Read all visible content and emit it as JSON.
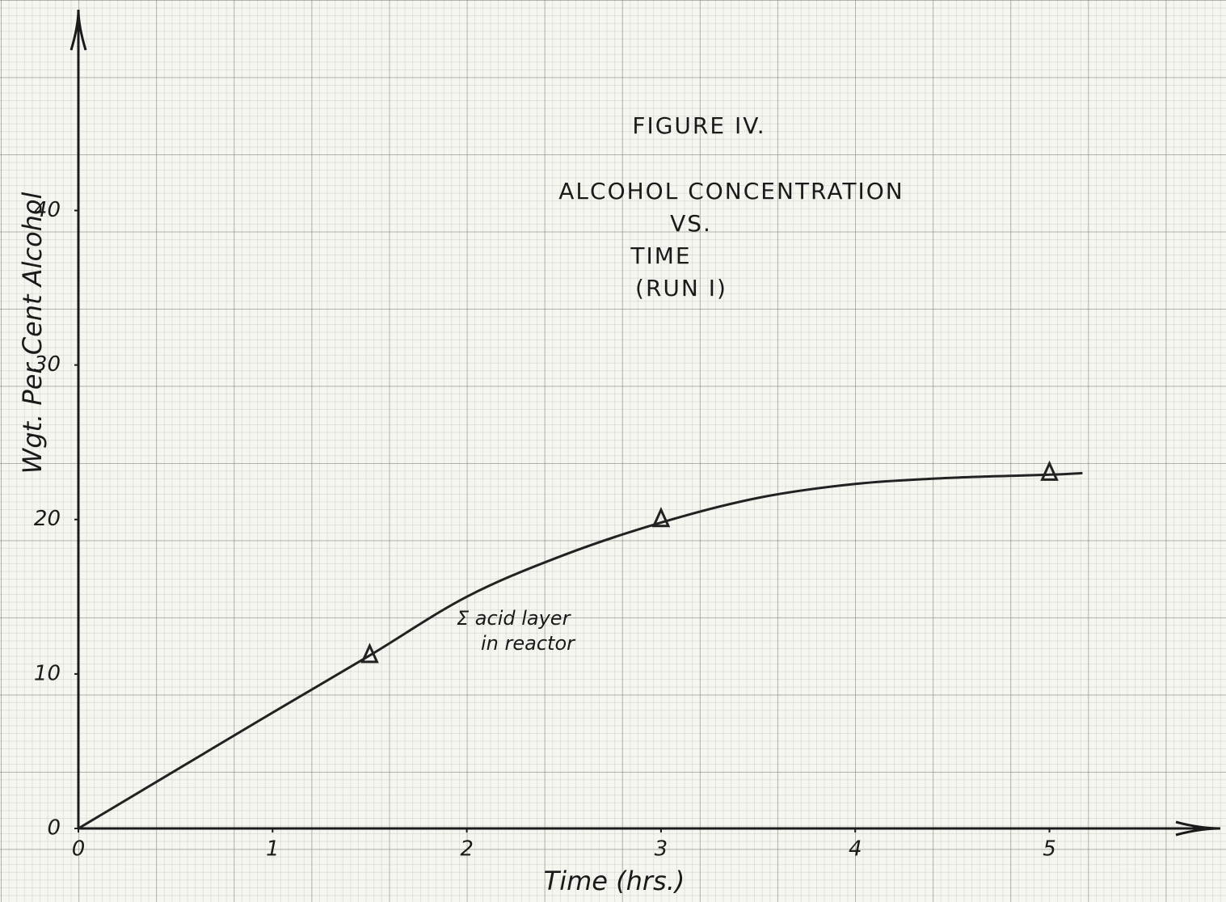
{
  "chart_data": {
    "type": "line",
    "title": [
      "FIGURE IV.",
      "ALCOHOL CONCENTRATION",
      "VS.",
      "TIME",
      "(RUN I)"
    ],
    "x_label": "Time (hrs.)",
    "y_label": "Wgt. Per Cent Alcohol",
    "annotation": [
      "Σ acid layer",
      "in reactor"
    ],
    "series": [
      {
        "marker": "triangle",
        "color": "#222222",
        "x": [
          1.5,
          3,
          5
        ],
        "values": [
          11.2,
          20,
          23
        ]
      },
      {
        "marker": "none",
        "color": "#222222",
        "x": [
          0,
          1,
          1.5,
          2,
          2.5,
          3,
          3.5,
          4,
          4.5,
          5,
          5.17
        ],
        "values": [
          0,
          7.5,
          11.2,
          15,
          17.7,
          19.8,
          21.4,
          22.3,
          22.7,
          22.9,
          23
        ]
      }
    ],
    "xlim": [
      0,
      5.88
    ],
    "ylim": [
      0,
      53
    ],
    "xticks": [
      0,
      1,
      2,
      3,
      4,
      5
    ],
    "yticks": [
      0,
      10,
      20,
      30,
      40
    ]
  }
}
